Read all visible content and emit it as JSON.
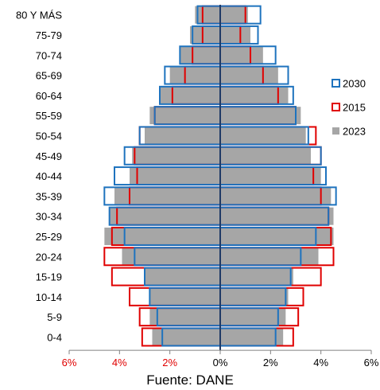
{
  "chart_data": {
    "type": "bar",
    "orientation": "horizontal-pyramid",
    "categories": [
      "0-4",
      "5-9",
      "10-14",
      "15-19",
      "20-24",
      "25-29",
      "30-34",
      "35-39",
      "40-44",
      "45-49",
      "50-54",
      "55-59",
      "60-64",
      "65-69",
      "70-74",
      "75-79",
      "80 Y MÁS"
    ],
    "xlim": [
      -6,
      6
    ],
    "x_tick_labels": [
      "6%",
      "4%",
      "2%",
      "0%",
      "2%",
      "4%",
      "6%"
    ],
    "x_tick_values": [
      -6,
      -4,
      -2,
      0,
      2,
      4,
      6
    ],
    "x_tick_colors": [
      "#e00000",
      "#e00000",
      "#e00000",
      "#000000",
      "#000000",
      "#000000",
      "#000000"
    ],
    "series": [
      {
        "name": "2023",
        "style": "filled",
        "color": "#a6a6a6",
        "left": [
          2.7,
          2.8,
          2.8,
          3.0,
          3.9,
          4.6,
          4.4,
          4.2,
          3.6,
          3.5,
          3.0,
          2.8,
          2.4,
          2.0,
          1.6,
          1.2,
          1.0
        ],
        "right": [
          2.5,
          2.6,
          2.7,
          2.9,
          3.9,
          4.5,
          4.5,
          4.4,
          4.0,
          3.6,
          3.4,
          3.2,
          2.7,
          2.3,
          1.7,
          1.2,
          1.1
        ]
      },
      {
        "name": "2015",
        "style": "outline",
        "color": "#e00000",
        "left": [
          3.1,
          3.2,
          3.6,
          4.3,
          4.6,
          4.3,
          4.1,
          3.6,
          3.3,
          3.4,
          3.2,
          2.6,
          1.9,
          1.4,
          1.1,
          0.7,
          0.7
        ],
        "right": [
          2.9,
          3.1,
          3.3,
          4.0,
          4.5,
          4.4,
          4.3,
          4.0,
          3.7,
          4.0,
          3.8,
          3.0,
          2.3,
          1.7,
          1.2,
          0.8,
          1.0
        ]
      },
      {
        "name": "2030",
        "style": "outline",
        "color": "#1e73be",
        "left": [
          2.3,
          2.5,
          2.8,
          3.0,
          3.4,
          3.8,
          4.4,
          4.6,
          4.2,
          3.8,
          3.2,
          2.6,
          2.4,
          2.2,
          1.6,
          1.1,
          0.9
        ],
        "right": [
          2.2,
          2.3,
          2.6,
          2.8,
          3.2,
          3.8,
          4.3,
          4.6,
          4.2,
          4.0,
          3.5,
          3.0,
          2.9,
          2.7,
          2.2,
          1.5,
          1.6
        ]
      }
    ],
    "legend_position": "right",
    "legend_order": [
      "2030",
      "2015",
      "2023"
    ],
    "grid": false
  },
  "source_text": "Fuente: DANE"
}
